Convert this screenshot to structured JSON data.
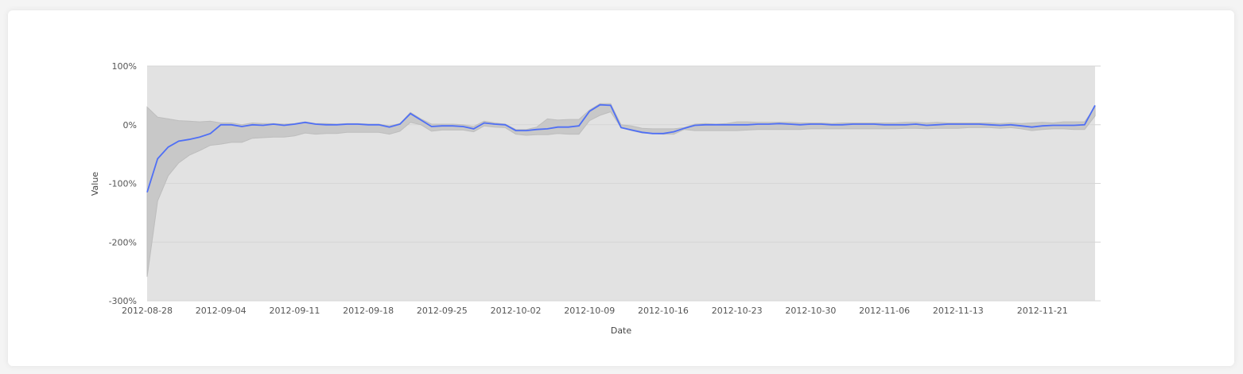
{
  "chart_data": {
    "type": "line",
    "xlabel": "Date",
    "ylabel": "Value",
    "ylim": [
      -300,
      100
    ],
    "y_ticks": [
      "100%",
      "0%",
      "-100%",
      "-200%",
      "-300%"
    ],
    "y_tick_values": [
      100,
      0,
      -100,
      -200,
      -300
    ],
    "x_ticks": [
      "2012-08-28",
      "2012-09-04",
      "2012-09-11",
      "2012-09-18",
      "2012-09-25",
      "2012-10-02",
      "2012-10-09",
      "2012-10-16",
      "2012-10-23",
      "2012-10-30",
      "2012-11-06",
      "2012-11-13",
      "2012-11-21"
    ],
    "grid": true,
    "colors": {
      "line": "#4f6ff5",
      "band": "#c8c8c8",
      "plot_bg": "#e2e2e2"
    },
    "x_range": [
      "2012-08-28",
      "2012-11-26"
    ],
    "series": [
      {
        "role": "line",
        "values": [
          -115,
          -58,
          -38,
          -28,
          -25,
          -21,
          -15,
          0,
          0,
          -3,
          0,
          -1,
          1,
          -1,
          1,
          4,
          1,
          0,
          0,
          1,
          1,
          0,
          0,
          -4,
          1,
          19,
          8,
          -3,
          -2,
          -2,
          -3,
          -7,
          3,
          1,
          0,
          -10,
          -10,
          -8,
          -7,
          -4,
          -4,
          -2,
          23,
          34,
          33,
          -5,
          -9,
          -13,
          -15,
          -15,
          -12,
          -6,
          -1,
          0,
          0,
          0,
          0,
          0,
          1,
          1,
          2,
          1,
          0,
          1,
          1,
          0,
          0,
          1,
          1,
          1,
          0,
          0,
          0,
          1,
          -1,
          0,
          1,
          1,
          1,
          1,
          0,
          -1,
          0,
          -2,
          -4,
          -2,
          -1,
          -1,
          -1,
          0,
          33
        ]
      },
      {
        "role": "upper",
        "values": [
          30,
          13,
          10,
          7,
          6,
          5,
          6,
          3,
          3,
          0,
          3,
          2,
          2,
          1,
          2,
          5,
          2,
          2,
          1,
          2,
          2,
          1,
          1,
          -2,
          2,
          21,
          10,
          1,
          1,
          1,
          0,
          -3,
          6,
          3,
          1,
          -8,
          -8,
          -4,
          10,
          8,
          9,
          9,
          25,
          36,
          36,
          0,
          -2,
          -6,
          -7,
          -7,
          -7,
          -5,
          1,
          2,
          1,
          2,
          5,
          5,
          4,
          4,
          4,
          4,
          3,
          3,
          3,
          2,
          3,
          3,
          3,
          3,
          3,
          3,
          4,
          4,
          3,
          4,
          3,
          3,
          3,
          3,
          3,
          2,
          3,
          2,
          3,
          4,
          3,
          5,
          5,
          5,
          30
        ]
      },
      {
        "role": "lower",
        "values": [
          -259,
          -130,
          -87,
          -65,
          -52,
          -44,
          -35,
          -33,
          -30,
          -30,
          -23,
          -22,
          -21,
          -21,
          -19,
          -14,
          -16,
          -15,
          -15,
          -13,
          -13,
          -13,
          -13,
          -16,
          -11,
          4,
          0,
          -11,
          -9,
          -9,
          -9,
          -12,
          -2,
          -4,
          -5,
          -16,
          -18,
          -17,
          -17,
          -15,
          -16,
          -16,
          7,
          16,
          22,
          -5,
          -10,
          -14,
          -15,
          -16,
          -16,
          -8,
          -10,
          -10,
          -10,
          -10,
          -10,
          -9,
          -8,
          -8,
          -8,
          -8,
          -8,
          -7,
          -7,
          -7,
          -7,
          -7,
          -7,
          -7,
          -7,
          -7,
          -6,
          -6,
          -7,
          -6,
          -6,
          -6,
          -5,
          -5,
          -5,
          -6,
          -5,
          -7,
          -10,
          -8,
          -7,
          -7,
          -8,
          -8,
          15
        ]
      }
    ]
  }
}
